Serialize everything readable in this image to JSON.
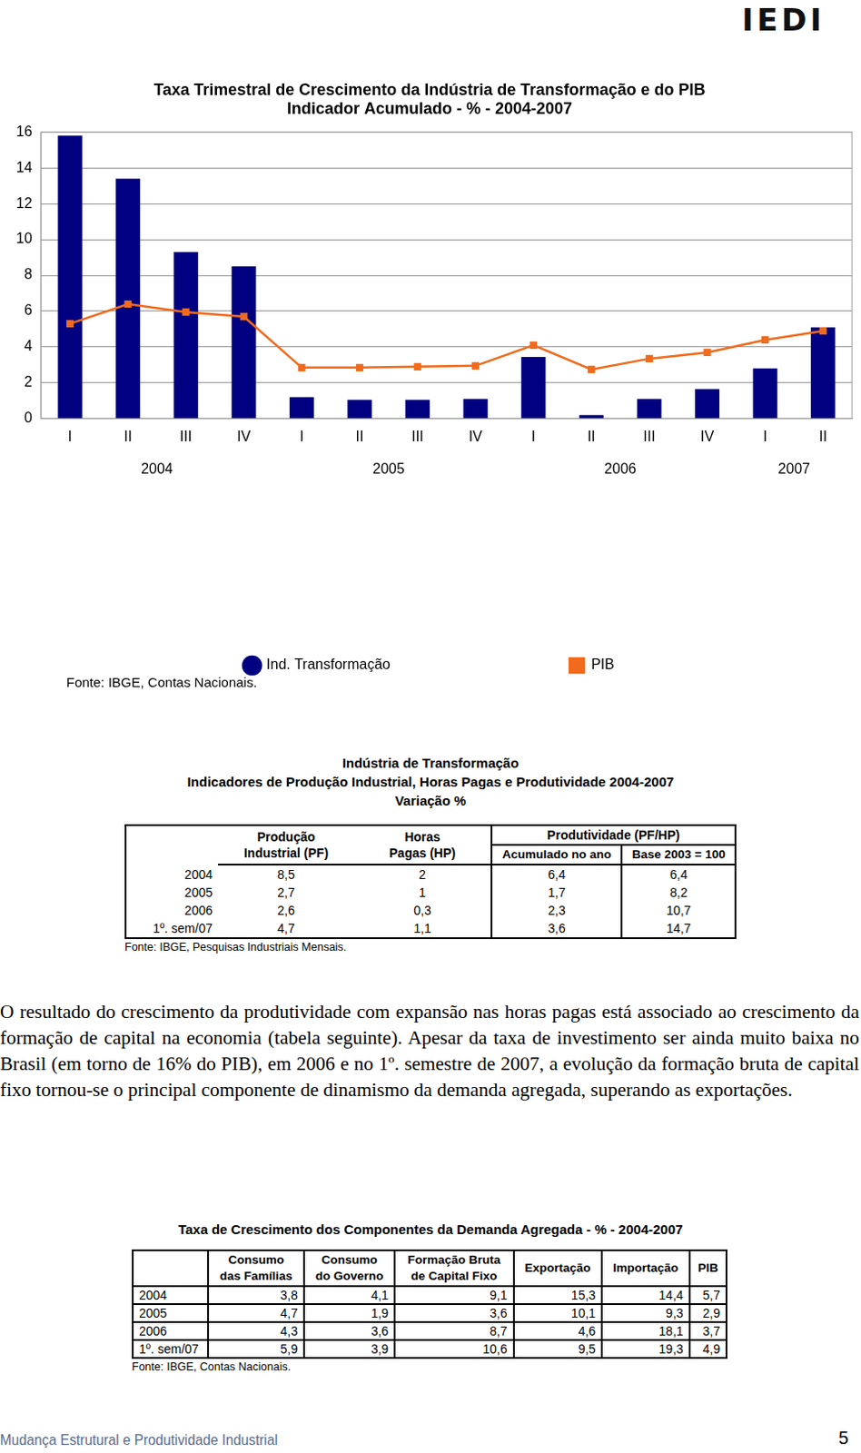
{
  "logo": "IEDI",
  "chart_data": {
    "type": "bar",
    "title": [
      "Taxa Trimestral de Crescimento da Indústria de Transformação e do PIB",
      "Indicador Acumulado - % - 2004-2007"
    ],
    "categories": [
      "I",
      "II",
      "III",
      "IV",
      "I",
      "II",
      "III",
      "IV",
      "I",
      "II",
      "III",
      "IV",
      "I",
      "II"
    ],
    "x_groups": [
      {
        "label": "2004",
        "count": 4
      },
      {
        "label": "2005",
        "count": 4
      },
      {
        "label": "2006",
        "count": 4
      },
      {
        "label": "2007",
        "count": 2
      }
    ],
    "series": [
      {
        "name": "Ind. Transformação",
        "type": "bar",
        "color": "#000080",
        "values": [
          15.8,
          13.4,
          9.3,
          8.5,
          1.2,
          1.05,
          1.05,
          1.1,
          3.45,
          0.2,
          1.1,
          1.65,
          2.8,
          5.1
        ]
      },
      {
        "name": "PIB",
        "type": "line",
        "color": "#f26a1b",
        "marker": "square",
        "values": [
          5.3,
          6.4,
          5.95,
          5.7,
          2.85,
          2.85,
          2.9,
          2.95,
          4.1,
          2.75,
          3.35,
          3.7,
          4.4,
          4.9
        ]
      }
    ],
    "ylim": [
      0,
      16
    ],
    "yticks": [
      0,
      2,
      4,
      6,
      8,
      10,
      12,
      14,
      16
    ],
    "grid": true,
    "legend": "bottom",
    "source": "Fonte: IBGE, Contas Nacionais."
  },
  "table1": {
    "title": [
      "Indústria de Transformação",
      "Indicadores de Produção Industrial, Horas Pagas e Produtividade 2004-2007",
      "Variação %"
    ],
    "columns": [
      [
        "Produção",
        "Industrial (PF)"
      ],
      [
        "Horas",
        "Pagas (HP)"
      ]
    ],
    "group": {
      "label": "Produtividade (PF/HP)",
      "columns": [
        "Acumulado no ano",
        "Base 2003 = 100"
      ]
    },
    "rows": [
      [
        "2004",
        "8,5",
        "2",
        "6,4",
        "6,4"
      ],
      [
        "2005",
        "2,7",
        "1",
        "1,7",
        "8,2"
      ],
      [
        "2006",
        "2,6",
        "0,3",
        "2,3",
        "10,7"
      ],
      [
        "1º. sem/07",
        "4,7",
        "1,1",
        "3,6",
        "14,7"
      ]
    ],
    "source": "Fonte: IBGE, Pesquisas Industriais Mensais."
  },
  "paragraph": "O resultado do crescimento da produtividade com expansão nas horas pagas está associado ao crescimento da formação de capital na economia (tabela seguinte). Apesar da taxa de investimento ser ainda muito baixa no Brasil (em torno de 16% do PIB), em 2006 e no 1º. semestre de 2007, a evolução da formação bruta de capital fixo tornou-se o principal componente de dinamismo da demanda agregada, superando as exportações.",
  "table2": {
    "title": "Taxa de Crescimento dos Componentes da Demanda Agregada - % - 2004-2007",
    "columns": [
      [
        "Consumo",
        "das Famílias"
      ],
      [
        "Consumo",
        "do Governo"
      ],
      [
        "Formação Bruta",
        "de Capital Fixo"
      ],
      [
        "Exportação"
      ],
      [
        "Importação"
      ],
      [
        "PIB"
      ]
    ],
    "rows": [
      [
        "2004",
        "3,8",
        "4,1",
        "9,1",
        "15,3",
        "14,4",
        "5,7"
      ],
      [
        "2005",
        "4,7",
        "1,9",
        "3,6",
        "10,1",
        "9,3",
        "2,9"
      ],
      [
        "2006",
        "4,3",
        "3,6",
        "8,7",
        "4,6",
        "18,1",
        "3,7"
      ],
      [
        "1º. sem/07",
        "5,9",
        "3,9",
        "10,6",
        "9,5",
        "19,3",
        "4,9"
      ]
    ],
    "source": "Fonte: IBGE, Contas Nacionais."
  },
  "footer": {
    "text": "Mudança Estrutural e Produtividade Industrial",
    "page": "5"
  }
}
